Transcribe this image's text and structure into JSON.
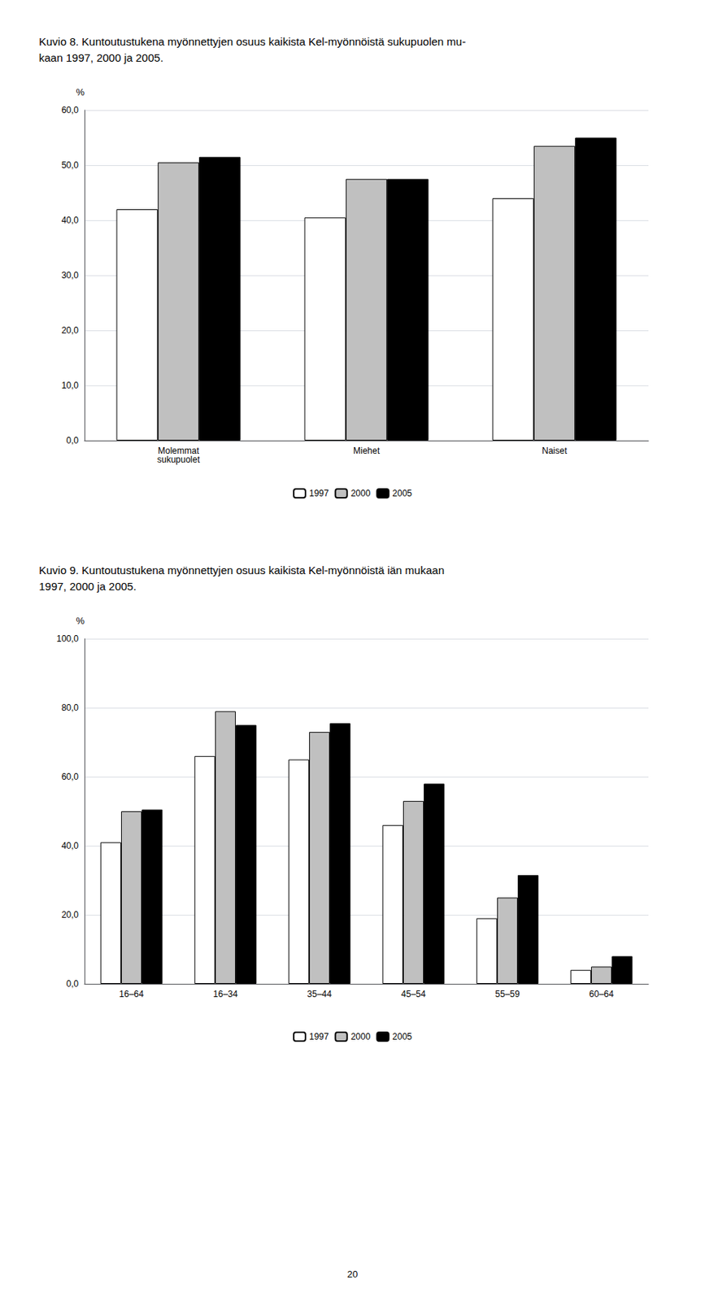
{
  "chart_data": [
    {
      "type": "bar",
      "title": "Kuvio 8. Kuntoutustukena myönnettyjen osuus kaikista Kel-myönnöistä sukupuolen mu-\nkaan 1997, 2000 ja 2005.",
      "ylabel": "%",
      "categories": [
        "Molemmat\nsukupuolet",
        "Miehet",
        "Naiset"
      ],
      "series": [
        {
          "name": "1997",
          "color": "#ffffff",
          "values": [
            42.0,
            40.5,
            44.0
          ]
        },
        {
          "name": "2000",
          "color": "#c0c0c0",
          "values": [
            50.5,
            47.5,
            53.5
          ]
        },
        {
          "name": "2005",
          "color": "#000000",
          "values": [
            51.5,
            47.5,
            55.0
          ]
        }
      ],
      "ylim": [
        0,
        60
      ],
      "yticks": [
        {
          "value": 0,
          "label": "0,0"
        },
        {
          "value": 10,
          "label": "10,0"
        },
        {
          "value": 20,
          "label": "20,0"
        },
        {
          "value": 30,
          "label": "30,0"
        },
        {
          "value": 40,
          "label": "40,0"
        },
        {
          "value": 50,
          "label": "50,0"
        },
        {
          "value": 60,
          "label": "60,0"
        }
      ],
      "grid": true,
      "legend": "bottom"
    },
    {
      "type": "bar",
      "title": "Kuvio 9. Kuntoutustukena myönnettyjen osuus kaikista Kel-myönnöistä iän mukaan\n1997, 2000 ja 2005.",
      "ylabel": "%",
      "categories": [
        "16–64",
        "16–34",
        "35–44",
        "45–54",
        "55–59",
        "60–64"
      ],
      "series": [
        {
          "name": "1997",
          "color": "#ffffff",
          "values": [
            41.0,
            66.0,
            65.0,
            46.0,
            19.0,
            4.0
          ]
        },
        {
          "name": "2000",
          "color": "#c0c0c0",
          "values": [
            50.0,
            79.0,
            73.0,
            53.0,
            25.0,
            5.0
          ]
        },
        {
          "name": "2005",
          "color": "#000000",
          "values": [
            50.5,
            75.0,
            75.5,
            58.0,
            31.5,
            8.0
          ]
        }
      ],
      "ylim": [
        0,
        100
      ],
      "yticks": [
        {
          "value": 0,
          "label": "0,0"
        },
        {
          "value": 20,
          "label": "20,0"
        },
        {
          "value": 40,
          "label": "40,0"
        },
        {
          "value": 60,
          "label": "60,0"
        },
        {
          "value": 80,
          "label": "80,0"
        },
        {
          "value": 100,
          "label": "100,0"
        }
      ],
      "grid": true,
      "legend": "bottom"
    }
  ],
  "page_number": "20"
}
